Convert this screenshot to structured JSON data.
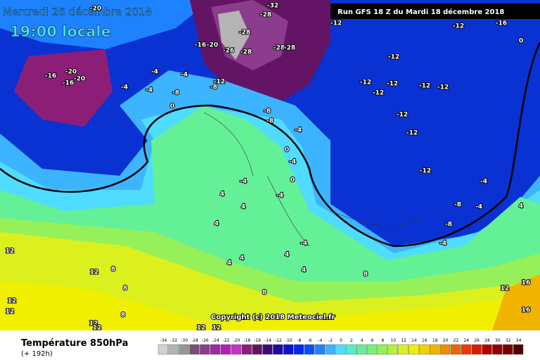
{
  "header": {
    "date": "Mercredi 26 décembre 2018",
    "time": "19:00 locale",
    "run": "Run GFS 18 Z du Mardi 18 décembre 2018"
  },
  "footer": {
    "title": "Température 850hPa",
    "lead": "(+ 192h)",
    "copyright": "Copyright (c) 2018 Meteociel.fr"
  },
  "legend": {
    "values": [
      -34,
      -32,
      -30,
      -28,
      -26,
      -24,
      -22,
      -20,
      -18,
      -16,
      -14,
      -12,
      -10,
      -8,
      -6,
      -4,
      -2,
      0,
      2,
      4,
      6,
      8,
      10,
      12,
      14,
      16,
      18,
      20,
      22,
      24,
      26,
      28,
      30,
      32,
      34
    ],
    "colors": [
      "#d2d2d2",
      "#b4b4b4",
      "#969696",
      "#785078",
      "#8c3c8c",
      "#a028a0",
      "#b41eb4",
      "#c832c8",
      "#8c1e78",
      "#641464",
      "#3c0a78",
      "#1e0aa0",
      "#0a14c8",
      "#0028f0",
      "#0050ff",
      "#1e82ff",
      "#3cb4ff",
      "#50dcff",
      "#50f0c8",
      "#64f096",
      "#78f078",
      "#96f05a",
      "#b4f03c",
      "#dcf01e",
      "#f0f000",
      "#f0d200",
      "#f0b400",
      "#f08c00",
      "#f06400",
      "#e63c00",
      "#d21e00",
      "#b40000",
      "#960000",
      "#780000",
      "#500000"
    ]
  },
  "map_labels": [
    "-20",
    "-28",
    "-32",
    "-28",
    "-28",
    "-28",
    "-28",
    "-16",
    "-20",
    "-26",
    "-16",
    "-20",
    "-16",
    "-20",
    "-4",
    "-4",
    "-4",
    "-4",
    "-8",
    "-12",
    "-8",
    "-12",
    "-12",
    "0",
    "-12",
    "-12",
    "-12",
    "-12",
    "-12",
    "-12",
    "-12",
    "-12",
    "-12",
    "-16",
    "-8",
    "-8",
    "-4",
    "0",
    "0",
    "-4",
    "0",
    "-4",
    "-4",
    "4",
    "4",
    "4",
    "-4",
    "4",
    "4",
    "4",
    "4",
    "8",
    "-8",
    "-8",
    "-4",
    "-4",
    "-4",
    "4",
    "12",
    "12",
    "8",
    "8",
    "12",
    "12",
    "12",
    "8",
    "12",
    "12",
    "12",
    "12",
    "16",
    "16",
    "8"
  ]
}
